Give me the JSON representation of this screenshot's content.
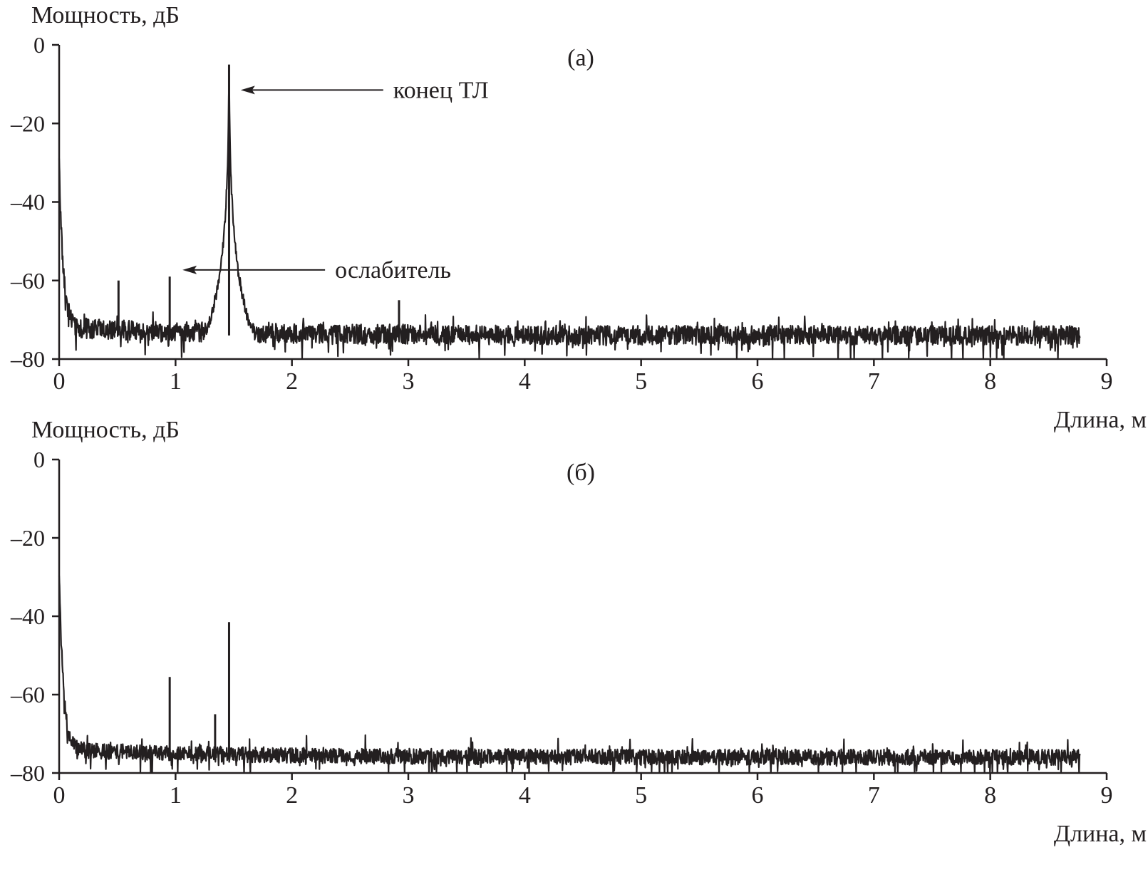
{
  "colors": {
    "ink": "#231f20",
    "background": "#ffffff"
  },
  "chart_data": [
    {
      "type": "line",
      "panel_label": "(а)",
      "ylabel": "Мощность, дБ",
      "xlabel": "Длина, м",
      "xlim": [
        0,
        9
      ],
      "ylim": [
        -80,
        0
      ],
      "x_ticks": [
        "0",
        "1",
        "2",
        "3",
        "4",
        "5",
        "6",
        "7",
        "8",
        "9"
      ],
      "y_ticks": [
        "0",
        "–20",
        "–40",
        "–60",
        "–80"
      ],
      "x_range": [
        0,
        8.77
      ],
      "noise_floor_db": -74,
      "noise_floor_start_db": -72,
      "noise_spread_db": 5,
      "near_end_db": -30,
      "peaks": [
        {
          "x": 0.51,
          "y": -60
        },
        {
          "x": 0.95,
          "y": -59
        },
        {
          "x": 1.46,
          "y": -5
        },
        {
          "x": 2.92,
          "y": -65
        }
      ],
      "annotations": [
        {
          "text": "конец ТЛ",
          "x": 1.56,
          "y": -11.5
        },
        {
          "text": "ослабитель",
          "x": 1.06,
          "y": -57.3
        }
      ]
    },
    {
      "type": "line",
      "panel_label": "(б)",
      "ylabel": "Мощность, дБ",
      "xlabel": "Длина, м",
      "xlim": [
        0,
        9
      ],
      "ylim": [
        -80,
        0
      ],
      "x_ticks": [
        "0",
        "1",
        "2",
        "3",
        "4",
        "5",
        "6",
        "7",
        "8",
        "9"
      ],
      "y_ticks": [
        "0",
        "–20",
        "–40",
        "–60",
        "–80"
      ],
      "x_range": [
        0,
        8.77
      ],
      "noise_floor_db": -76,
      "noise_floor_start_db": -74,
      "noise_spread_db": 4,
      "near_end_db": -28,
      "peaks": [
        {
          "x": 0.95,
          "y": -55.5
        },
        {
          "x": 1.34,
          "y": -65
        },
        {
          "x": 1.46,
          "y": -41.5
        }
      ],
      "annotations": []
    }
  ]
}
